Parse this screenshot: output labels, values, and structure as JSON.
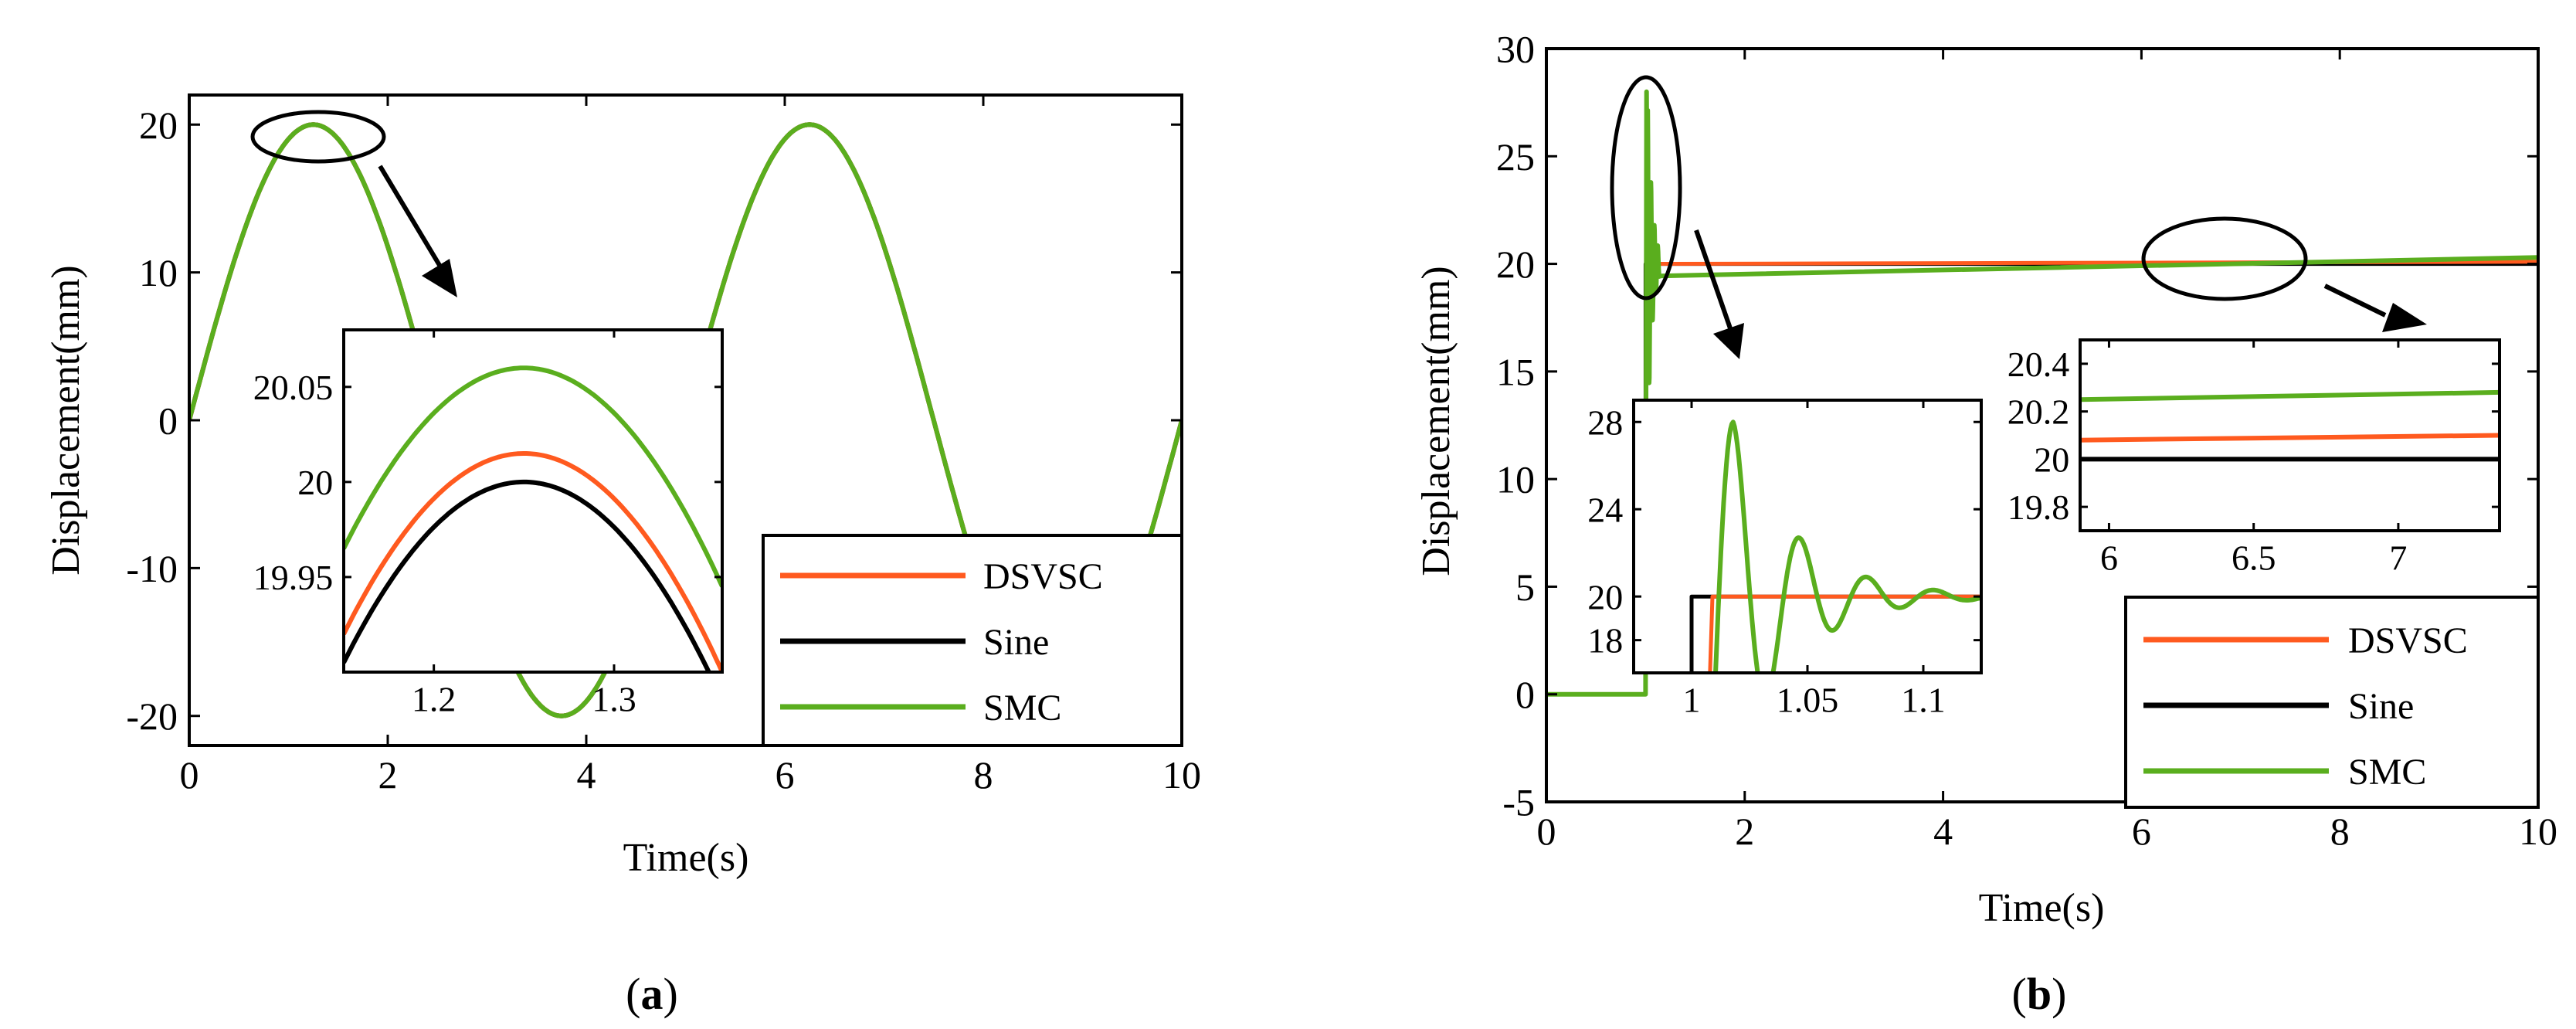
{
  "colors": {
    "DSVSC": "#ff5a1f",
    "Sine": "#000000",
    "SMC": "#5aae1e"
  },
  "chart_data": [
    {
      "id": "a",
      "type": "line",
      "panel_label": "a",
      "xlabel": "Time(s)",
      "ylabel": "Displacement(mm)",
      "xlim": [
        0,
        10
      ],
      "ylim": [
        -22,
        22
      ],
      "x_ticks": [
        "0",
        "2",
        "4",
        "6",
        "8",
        "10"
      ],
      "y_ticks": [
        "-20",
        "-10",
        "0",
        "10",
        "20"
      ],
      "legend": [
        "DSVSC",
        "Sine",
        "SMC"
      ],
      "series": [
        {
          "name": "DSVSC",
          "function": "20*sin(2*pi*t/5)",
          "x_range": [
            0,
            10
          ]
        },
        {
          "name": "Sine",
          "function": "20*sin(2*pi*t/5)",
          "x_range": [
            0,
            10
          ]
        },
        {
          "name": "SMC",
          "function": "20*sin(2*pi*t/5)",
          "x_range": [
            0,
            10
          ]
        }
      ],
      "inset": {
        "xlim": [
          1.15,
          1.36
        ],
        "ylim": [
          19.9,
          20.08
        ],
        "x_ticks": [
          "1.2",
          "1.3"
        ],
        "y_ticks": [
          "20.05",
          "20",
          "19.95"
        ],
        "series": [
          {
            "name": "DSVSC",
            "peak": 20.015,
            "peak_time": 1.25
          },
          {
            "name": "Sine",
            "peak": 20.0,
            "peak_time": 1.25
          },
          {
            "name": "SMC",
            "peak": 20.06,
            "peak_time": 1.25
          }
        ]
      }
    },
    {
      "id": "b",
      "type": "line",
      "panel_label": "b",
      "xlabel": "Time(s)",
      "ylabel": "Displacement(mm)",
      "xlim": [
        0,
        10
      ],
      "ylim": [
        -5,
        30
      ],
      "x_ticks": [
        "0",
        "2",
        "4",
        "6",
        "8",
        "10"
      ],
      "y_ticks": [
        "-5",
        "0",
        "5",
        "10",
        "15",
        "20",
        "25",
        "30"
      ],
      "legend": [
        "DSVSC",
        "Sine",
        "SMC"
      ],
      "series": [
        {
          "name": "DSVSC",
          "step_time": 1.0,
          "step_value": 20.0,
          "final_value": 20.1
        },
        {
          "name": "Sine",
          "step_time": 1.0,
          "step_value": 20.0,
          "final_value": 20.0
        },
        {
          "name": "SMC",
          "step_time": 1.0,
          "step_value": 20.0,
          "overshoot_peak": 28,
          "final_value": 20.3
        }
      ],
      "inset_left": {
        "xlim": [
          0.975,
          1.125
        ],
        "ylim": [
          16.5,
          29
        ],
        "x_ticks": [
          "1",
          "1.05",
          "1.1"
        ],
        "y_ticks": [
          "28",
          "24",
          "20",
          "18"
        ],
        "series": [
          {
            "name": "Sine",
            "step_time": 1.0,
            "value": 20
          },
          {
            "name": "DSVSC",
            "step_time": 1.008,
            "value": 20
          },
          {
            "name": "SMC",
            "step_time": 1.008,
            "peak": 28,
            "peak_time": 1.018,
            "settle": 20
          }
        ]
      },
      "inset_right": {
        "xlim": [
          5.9,
          7.35
        ],
        "ylim": [
          19.7,
          20.5
        ],
        "x_ticks": [
          "6",
          "6.5",
          "7"
        ],
        "y_ticks": [
          "20.4",
          "20.2",
          "20",
          "19.8"
        ],
        "series": [
          {
            "name": "SMC",
            "start": 20.25,
            "end": 20.28
          },
          {
            "name": "DSVSC",
            "start": 20.08,
            "end": 20.1
          },
          {
            "name": "Sine",
            "start": 20.0,
            "end": 20.0
          }
        ]
      }
    }
  ]
}
